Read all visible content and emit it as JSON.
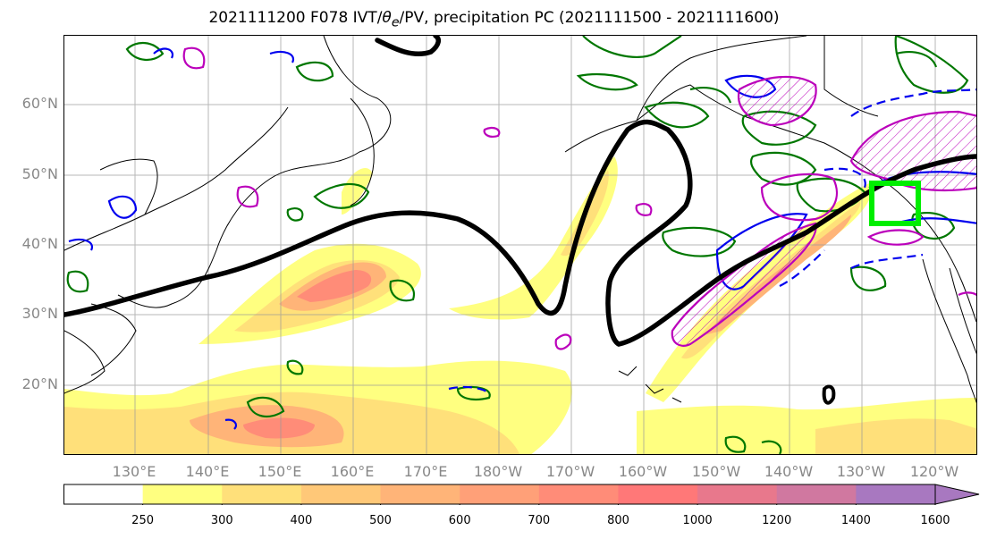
{
  "title_prefix": "2021111200 F078 IVT/",
  "title_theta": "θ",
  "title_theta_sub": "e",
  "title_suffix": "/PV, precipitation PC (2021111500 - 2021111600)",
  "lat_labels": [
    "60°N",
    "50°N",
    "40°N",
    "30°N",
    "20°N"
  ],
  "lon_labels": [
    "130°E",
    "140°E",
    "150°E",
    "160°E",
    "170°E",
    "180°W",
    "170°W",
    "160°W",
    "150°W",
    "140°W",
    "130°W",
    "120°W"
  ],
  "colorbar": {
    "ticks": [
      "250",
      "300",
      "400",
      "500",
      "600",
      "700",
      "800",
      "1000",
      "1200",
      "1400",
      "1600"
    ],
    "colors": [
      "#ffffff",
      "#ffff80",
      "#ffe07a",
      "#ffc878",
      "#ffb478",
      "#ffa078",
      "#ff8c78",
      "#ff7878",
      "#e8788c",
      "#d078a0",
      "#a878c0"
    ]
  },
  "colors": {
    "ivt_black": "#000000",
    "pv_green": "#007700",
    "theta_blue": "#0000ee",
    "precip_magenta": "#bb00bb",
    "box_lime": "#00ee00",
    "grid": "#999999"
  }
}
